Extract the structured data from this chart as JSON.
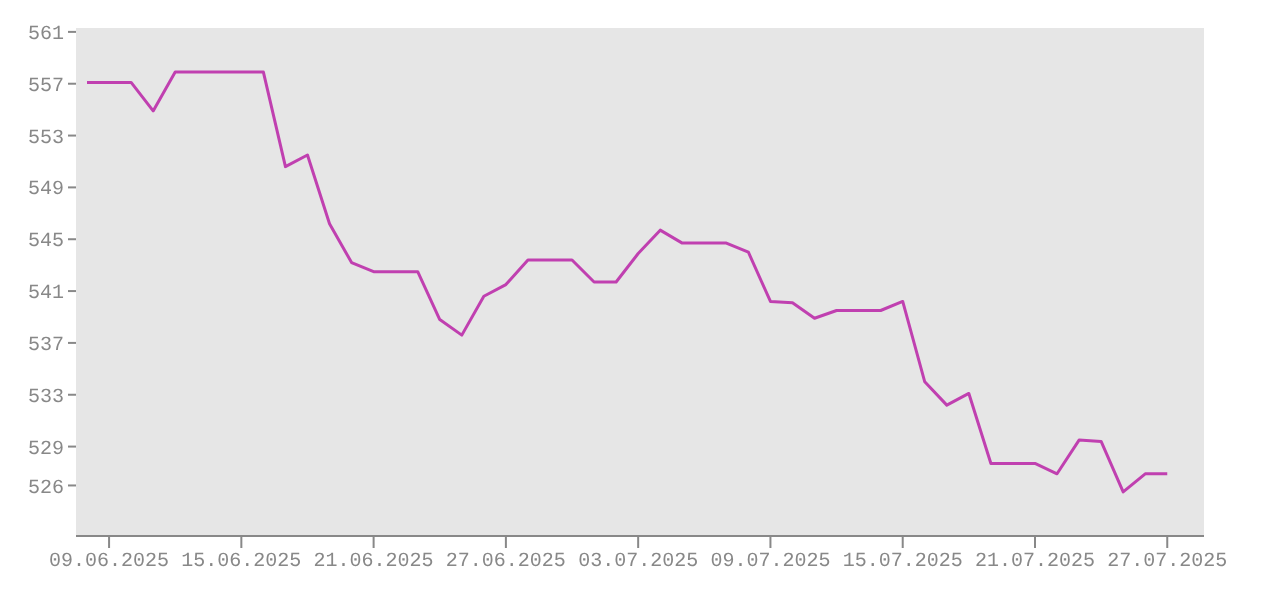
{
  "chart_data": {
    "type": "line",
    "x": [
      "2025-06-08",
      "2025-06-09",
      "2025-06-10",
      "2025-06-11",
      "2025-06-12",
      "2025-06-13",
      "2025-06-14",
      "2025-06-15",
      "2025-06-16",
      "2025-06-17",
      "2025-06-18",
      "2025-06-19",
      "2025-06-20",
      "2025-06-21",
      "2025-06-22",
      "2025-06-23",
      "2025-06-24",
      "2025-06-25",
      "2025-06-26",
      "2025-06-27",
      "2025-06-28",
      "2025-06-29",
      "2025-06-30",
      "2025-07-01",
      "2025-07-02",
      "2025-07-03",
      "2025-07-04",
      "2025-07-05",
      "2025-07-06",
      "2025-07-07",
      "2025-07-08",
      "2025-07-09",
      "2025-07-10",
      "2025-07-11",
      "2025-07-12",
      "2025-07-13",
      "2025-07-14",
      "2025-07-15",
      "2025-07-16",
      "2025-07-17",
      "2025-07-18",
      "2025-07-19",
      "2025-07-20",
      "2025-07-21",
      "2025-07-22",
      "2025-07-23",
      "2025-07-24",
      "2025-07-25",
      "2025-07-26",
      "2025-07-27"
    ],
    "series": [
      {
        "color": "#c040b0",
        "values": [
          557.1,
          557.1,
          557.1,
          554.9,
          557.9,
          557.9,
          557.9,
          557.9,
          557.9,
          550.6,
          551.5,
          546.2,
          543.2,
          542.5,
          542.5,
          542.5,
          538.8,
          537.6,
          540.6,
          541.5,
          543.4,
          543.4,
          543.4,
          541.7,
          541.7,
          543.9,
          545.7,
          544.7,
          544.7,
          544.7,
          544.0,
          540.2,
          540.1,
          538.9,
          539.5,
          539.5,
          539.5,
          540.2,
          534.0,
          532.2,
          533.1,
          527.7,
          527.7,
          527.7,
          526.9,
          529.5,
          529.4,
          525.5,
          526.9,
          526.9
        ]
      }
    ],
    "xlim": [
      "2025-06-07T12:00",
      "2025-07-28T16:00"
    ],
    "xticks": [
      {
        "value": "2025-06-09",
        "label": "09.06.2025"
      },
      {
        "value": "2025-06-15",
        "label": "15.06.2025"
      },
      {
        "value": "2025-06-21",
        "label": "21.06.2025"
      },
      {
        "value": "2025-06-27",
        "label": "27.06.2025"
      },
      {
        "value": "2025-07-03",
        "label": "03.07.2025"
      },
      {
        "value": "2025-07-09",
        "label": "09.07.2025"
      },
      {
        "value": "2025-07-15",
        "label": "15.07.2025"
      },
      {
        "value": "2025-07-21",
        "label": "21.07.2025"
      },
      {
        "value": "2025-07-27",
        "label": "27.07.2025"
      }
    ],
    "ylim": [
      522.1,
      561.3
    ],
    "yticks": [
      526,
      529,
      533,
      537,
      541,
      545,
      549,
      553,
      557,
      561
    ],
    "grid": false,
    "legend": false,
    "marker": "none",
    "line_style": "solid"
  }
}
